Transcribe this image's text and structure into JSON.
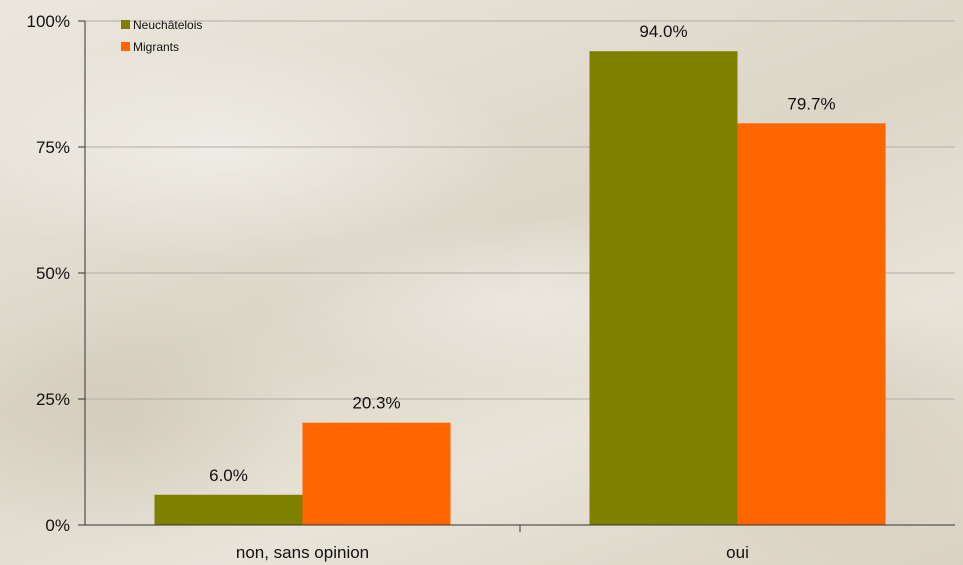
{
  "chart_data": {
    "type": "bar",
    "categories": [
      "non, sans opinion",
      "oui"
    ],
    "series": [
      {
        "name": "Neuchâtelois",
        "values": [
          6.0,
          94.0
        ],
        "labels": [
          "6.0%",
          "94.0%"
        ],
        "color": "#808000"
      },
      {
        "name": "Migrants",
        "values": [
          20.3,
          79.7
        ],
        "labels": [
          "20.3%",
          "79.7%"
        ],
        "color": "#ff6600"
      }
    ],
    "ylim": [
      0,
      100
    ],
    "yticks": [
      0,
      25,
      50,
      75,
      100
    ],
    "ytick_labels": [
      "0%",
      "25%",
      "50%",
      "75%",
      "100%"
    ],
    "title": "",
    "xlabel": "",
    "ylabel": "",
    "grid": true,
    "legend_position": "top-left"
  }
}
